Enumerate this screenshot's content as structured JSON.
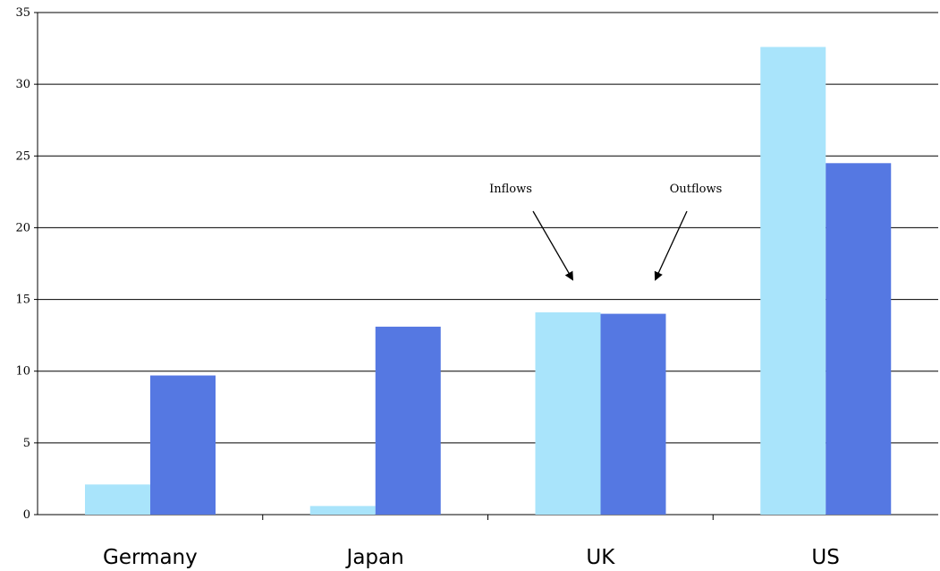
{
  "chart_data": {
    "type": "bar",
    "categories": [
      "Germany",
      "Japan",
      "UK",
      "US"
    ],
    "series": [
      {
        "values": [
          2.1,
          0.6,
          14.1,
          32.6
        ],
        "color": "#a9e4fb"
      },
      {
        "values": [
          9.7,
          13.1,
          14.0,
          24.5
        ],
        "color": "#5578e2"
      }
    ],
    "ylim": [
      0,
      35
    ],
    "yticks": [
      0,
      5,
      10,
      15,
      20,
      25,
      30,
      35
    ],
    "grid": true,
    "annotations": [
      {
        "text": "Inflows",
        "points_to_series": 0,
        "category": "UK"
      },
      {
        "text": "Outflows",
        "points_to_series": 1,
        "category": "UK"
      }
    ]
  }
}
